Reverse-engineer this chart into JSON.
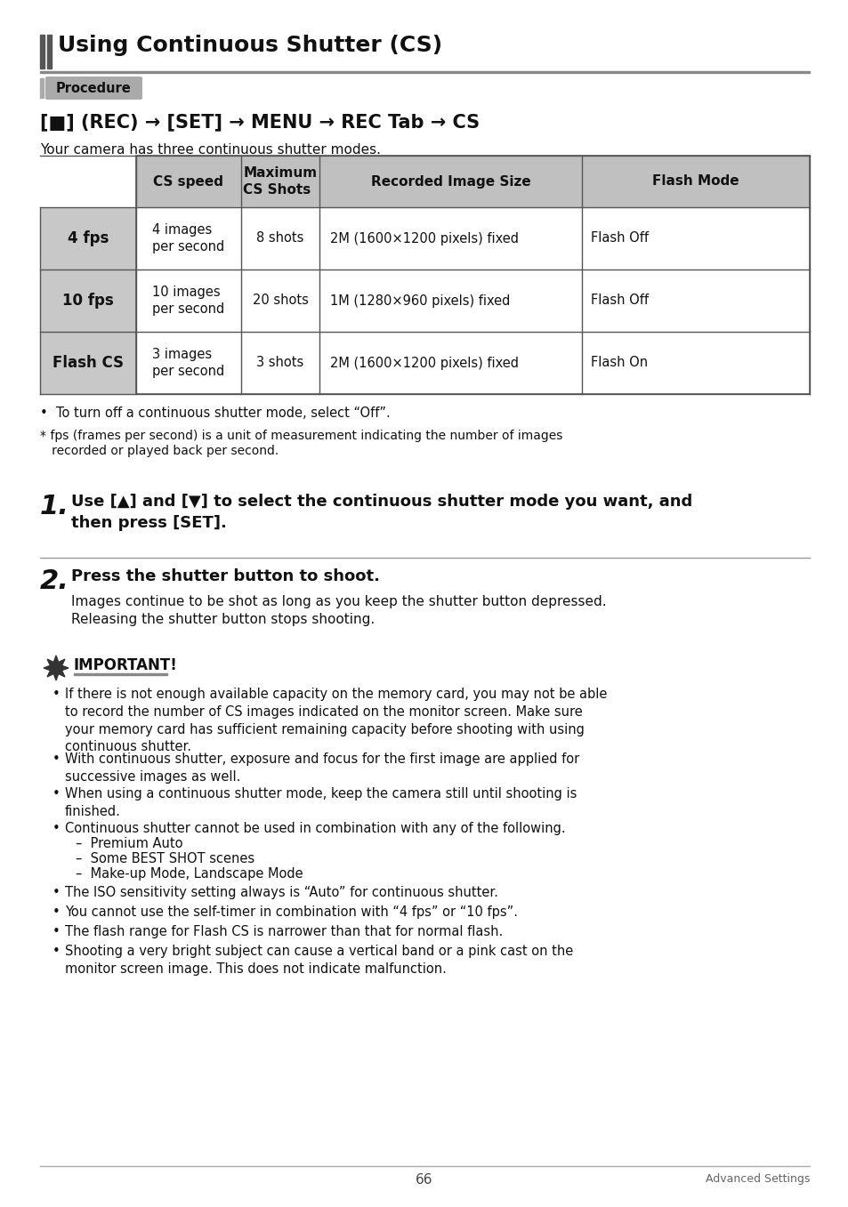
{
  "page_bg": "#ffffff",
  "title": "Using Continuous Shutter (CS)",
  "procedure_label": "Procedure",
  "nav_text": "[■] (REC) → [SET] → MENU → REC Tab → CS",
  "intro_text": "Your camera has three continuous shutter modes.",
  "table_headers": [
    "CS speed",
    "Maximum\nCS Shots",
    "Recorded Image Size",
    "Flash Mode"
  ],
  "table_rows": [
    [
      "4 fps",
      "4 images\nper second",
      "8 shots",
      "2M (1600×1200 pixels) fixed",
      "Flash Off"
    ],
    [
      "10 fps",
      "10 images\nper second",
      "20 shots",
      "1M (1280×960 pixels) fixed",
      "Flash Off"
    ],
    [
      "Flash CS",
      "3 images\nper second",
      "3 shots",
      "2M (1600×1200 pixels) fixed",
      "Flash On"
    ]
  ],
  "bullet1": "•  To turn off a continuous shutter mode, select “Off”.",
  "footnote_line1": "* fps (frames per second) is a unit of measurement indicating the number of images",
  "footnote_line2": "   recorded or played back per second.",
  "step1_num": "1.",
  "step1_text": "Use [▲] and [▼] to select the continuous shutter mode you want, and\nthen press [SET].",
  "step2_num": "2.",
  "step2_title": "Press the shutter button to shoot.",
  "step2_body": "Images continue to be shot as long as you keep the shutter button depressed.\nReleasing the shutter button stops shooting.",
  "important_label": "IMPORTANT!",
  "important_bullets": [
    "If there is not enough available capacity on the memory card, you may not be able\nto record the number of CS images indicated on the monitor screen. Make sure\nyour memory card has sufficient remaining capacity before shooting with using\ncontinuous shutter.",
    "With continuous shutter, exposure and focus for the first image are applied for\nsuccessive images as well.",
    "When using a continuous shutter mode, keep the camera still until shooting is\nfinished.",
    "Continuous shutter cannot be used in combination with any of the following.\n–  Premium Auto\n–  Some BEST SHOT scenes\n–  Make-up Mode, Landscape Mode",
    "The ISO sensitivity setting always is “Auto” for continuous shutter.",
    "You cannot use the self-timer in combination with “4 fps” or “10 fps”.",
    "The flash range for Flash CS is narrower than that for normal flash.",
    "Shooting a very bright subject can cause a vertical band or a pink cast on the\nmonitor screen image. This does not indicate malfunction."
  ],
  "page_num": "66",
  "footer_right": "Advanced Settings"
}
